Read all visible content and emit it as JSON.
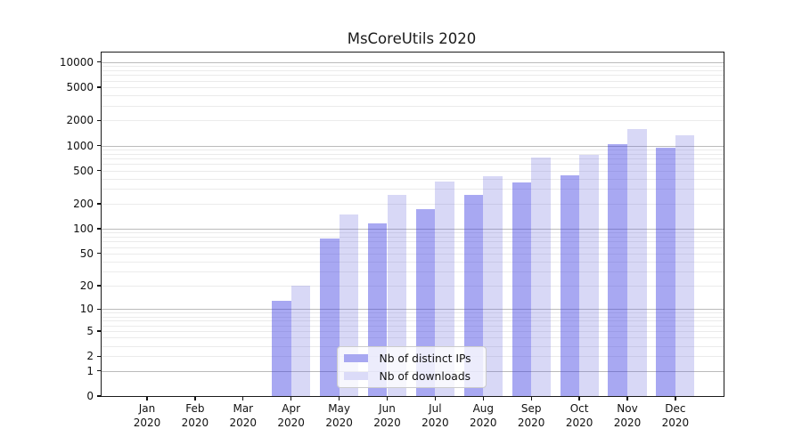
{
  "title": "MsCoreUtils 2020",
  "legend": {
    "position": "lower center",
    "items": [
      {
        "label": "Nb of distinct IPs",
        "color": "#a8a8f1"
      },
      {
        "label": "Nb of downloads",
        "color": "#dbdbf8"
      }
    ]
  },
  "chart_data": {
    "type": "bar",
    "title": "MsCoreUtils 2020",
    "categories": [
      "Jan 2020",
      "Feb 2020",
      "Mar 2020",
      "Apr 2020",
      "May 2020",
      "Jun 2020",
      "Jul 2020",
      "Aug 2020",
      "Sep 2020",
      "Oct 2020",
      "Nov 2020",
      "Dec 2020"
    ],
    "series": [
      {
        "name": "Nb of distinct IPs",
        "color_on_white": "#a8a8f1",
        "fill": "rgba(62,62,226,0.45)",
        "values": [
          0,
          0,
          0,
          13,
          76,
          117,
          173,
          256,
          362,
          444,
          1050,
          930
        ]
      },
      {
        "name": "Nb of downloads",
        "color_on_white": "#dbdbf8",
        "fill": "rgba(99,99,219,0.25)",
        "values": [
          0,
          0,
          0,
          20,
          150,
          255,
          367,
          433,
          727,
          766,
          1570,
          1320
        ]
      }
    ],
    "xlabel": "",
    "ylabel": "",
    "y_axis": {
      "scale": "log1p",
      "tick_values": [
        0,
        1,
        2,
        5,
        10,
        20,
        50,
        100,
        200,
        500,
        1000,
        2000,
        5000,
        10000
      ],
      "major_grid_values": [
        1,
        10,
        100,
        1000,
        10000
      ],
      "minor_grid_decades": [
        1,
        10,
        100,
        1000
      ],
      "ylim_top": 13000
    },
    "grid": "horizontal major+minor, no vertical",
    "legend_position": "lower center",
    "bars_start_month": "Apr 2020"
  }
}
